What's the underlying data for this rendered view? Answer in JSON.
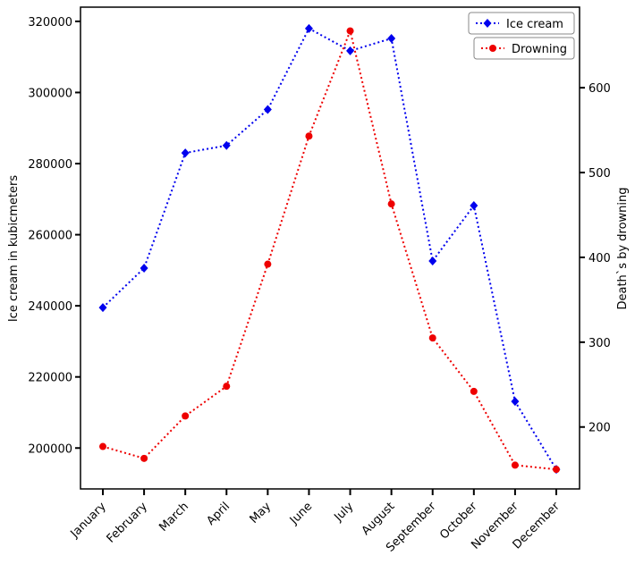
{
  "chart_data": {
    "type": "line",
    "categories": [
      "January",
      "February",
      "March",
      "April",
      "May",
      "June",
      "July",
      "August",
      "September",
      "October",
      "November",
      "December"
    ],
    "series": [
      {
        "name": "Ice cream",
        "axis": "left",
        "color": "#0000ee",
        "marker": "diamond",
        "values": [
          239500,
          250600,
          283000,
          285100,
          295200,
          318000,
          311700,
          315200,
          252600,
          268200,
          213100,
          194000
        ]
      },
      {
        "name": "Drowning",
        "axis": "right",
        "color": "#ee0000",
        "marker": "circle",
        "values": [
          177,
          163,
          213,
          248,
          392,
          543,
          667,
          463,
          305,
          242,
          155,
          150
        ]
      }
    ],
    "ylabel_left": "Ice cream in kubicmeters",
    "ylabel_right": "Death`s by drowning",
    "ylim_left": [
      188500,
      324000
    ],
    "ylim_right": [
      127,
      695
    ],
    "yticks_left": [
      200000,
      220000,
      240000,
      260000,
      280000,
      300000,
      320000
    ],
    "yticks_right": [
      200,
      300,
      400,
      500,
      600
    ],
    "legend_placement": "top-right",
    "grid": false
  }
}
